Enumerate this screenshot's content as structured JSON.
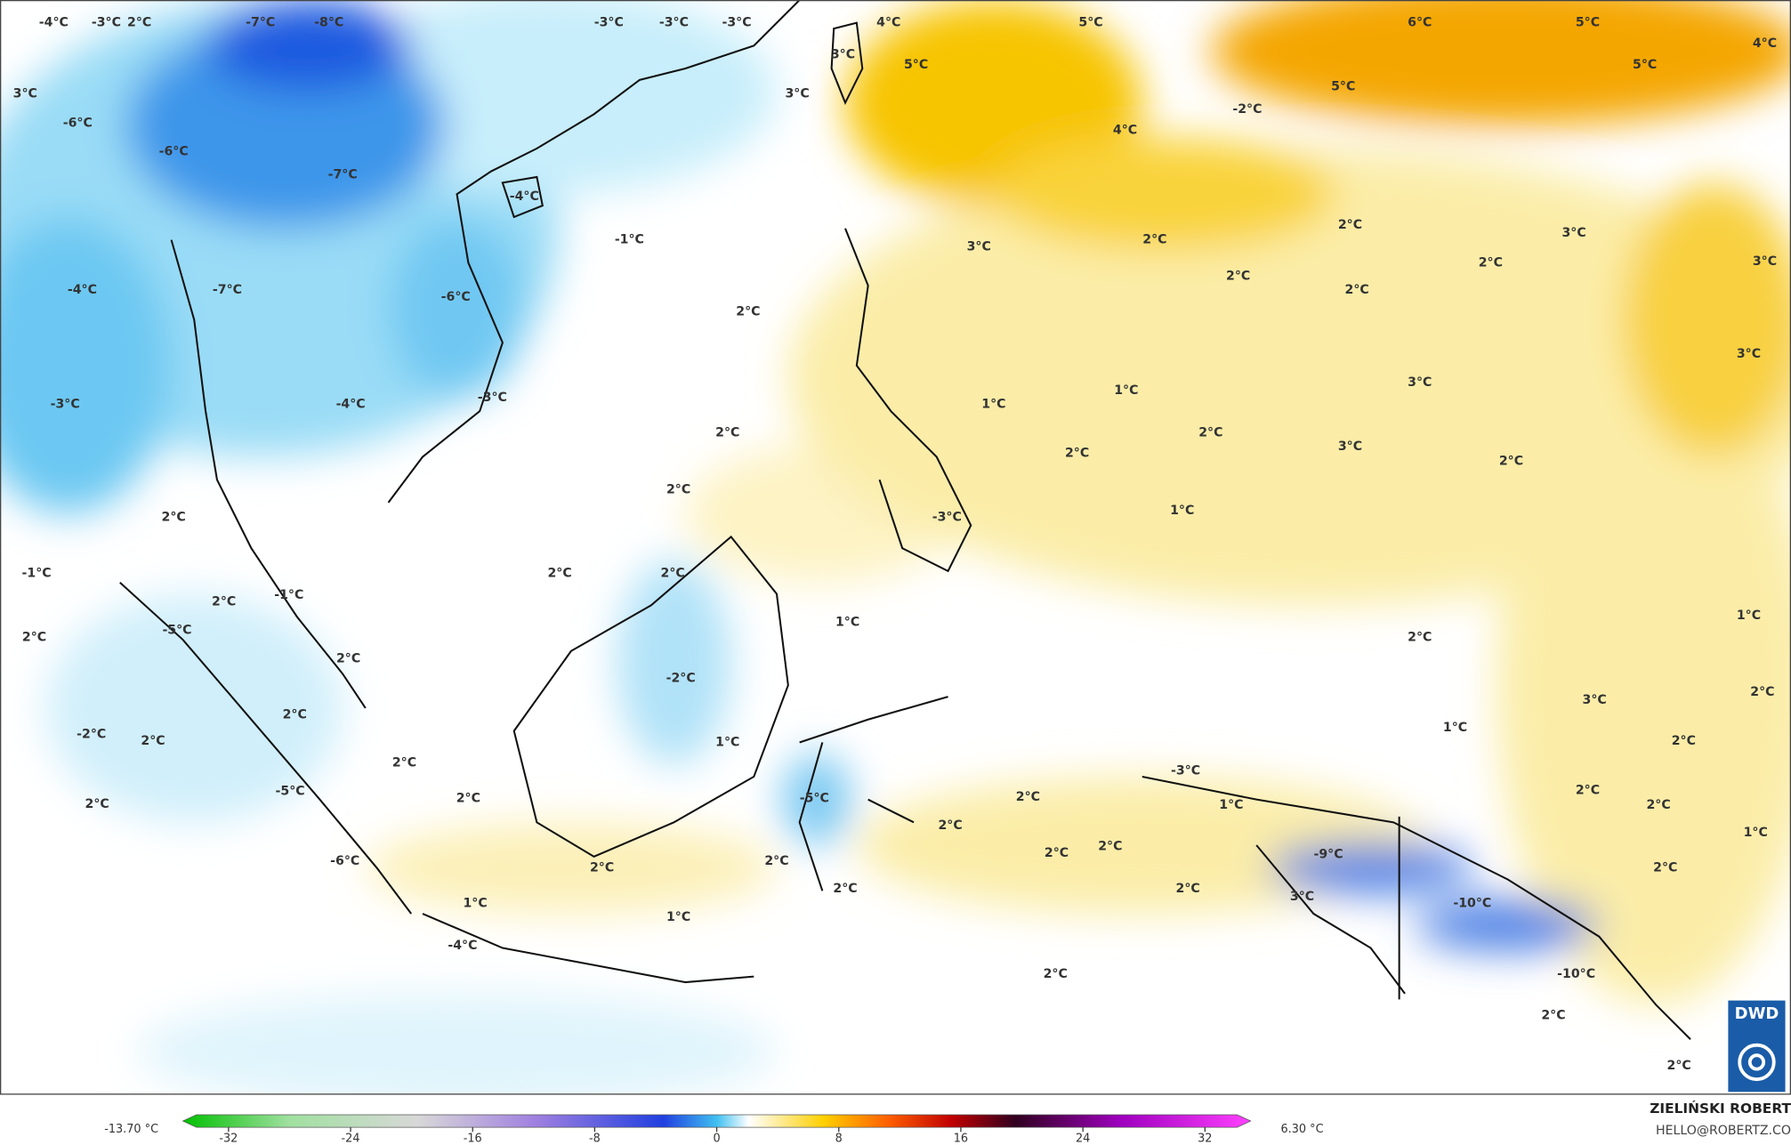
{
  "map": {
    "labels": [
      "-4°C",
      "-3°C",
      "2°C",
      "-7°C",
      "-8°C",
      "-3°C",
      "-3°C",
      "-3°C",
      "4°C",
      "5°C",
      "6°C",
      "5°C",
      "4°C",
      "3°C",
      "5°C",
      "5°C",
      "5°C",
      "3°C",
      "3°C",
      "-2°C",
      "-6°C",
      "4°C",
      "-6°C",
      "-7°C",
      "-4°C",
      "-1°C",
      "3°C",
      "2°C",
      "2°C",
      "3°C",
      "2°C",
      "3°C",
      "2°C",
      "-4°C",
      "-7°C",
      "-6°C",
      "2°C",
      "2°C",
      "3°C",
      "3°C",
      "1°C",
      "1°C",
      "-3°C",
      "-4°C",
      "-3°C",
      "2°C",
      "2°C",
      "3°C",
      "2°C",
      "2°C",
      "2°C",
      "1°C",
      "2°C",
      "-3°C",
      "2°C",
      "2°C",
      "-1°C",
      "2°C",
      "-1°C",
      "1°C",
      "1°C",
      "-5°C",
      "2°C",
      "2°C",
      "2°C",
      "-2°C",
      "3°C",
      "2°C",
      "2°C",
      "-2°C",
      "2°C",
      "1°C",
      "1°C",
      "2°C",
      "-3°C",
      "2°C",
      "-5°C",
      "2°C",
      "2°C",
      "-5°C",
      "2°C",
      "1°C",
      "2°C",
      "2°C",
      "2°C",
      "1°C",
      "2°C",
      "-9°C",
      "2°C",
      "-6°C",
      "2°C",
      "2°C",
      "2°C",
      "2°C",
      "2°C",
      "3°C",
      "-10°C",
      "1°C",
      "1°C",
      "-4°C",
      "-10°C",
      "2°C",
      "2°C",
      "2°C"
    ]
  },
  "colorbar": {
    "min_label": "-13.70 °C",
    "max_label": "6.30 °C",
    "lim": [
      -35,
      35
    ],
    "ticks": [
      -32,
      -24,
      -16,
      -8,
      0,
      8,
      16,
      24,
      32
    ]
  },
  "credits": {
    "author": "ZIELIŃSKI ROBERT",
    "contact": "HELLO@ROBERTZ.CO",
    "logo": "DWD"
  }
}
